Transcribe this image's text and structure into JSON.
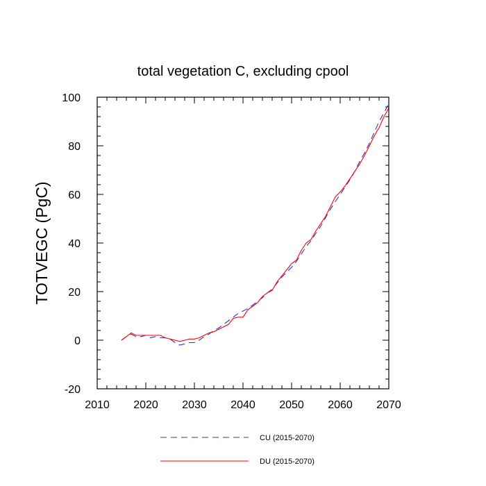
{
  "chart_data": {
    "type": "line",
    "title": "total vegetation C, excluding cpool",
    "xlabel": "",
    "ylabel": "TOTVEGC  (PgC)",
    "xlim": [
      2010,
      2070
    ],
    "ylim": [
      -20,
      100
    ],
    "x_ticks": [
      2010,
      2020,
      2030,
      2040,
      2050,
      2060,
      2070
    ],
    "y_ticks": [
      -20,
      0,
      20,
      40,
      60,
      80,
      100
    ],
    "x_minor_step": 2,
    "y_minor_step": 4,
    "grid": false,
    "legend_position": "bottom",
    "x": [
      2015,
      2016,
      2017,
      2018,
      2019,
      2020,
      2021,
      2022,
      2023,
      2024,
      2025,
      2026,
      2027,
      2028,
      2029,
      2030,
      2031,
      2032,
      2033,
      2034,
      2035,
      2036,
      2037,
      2038,
      2039,
      2040,
      2041,
      2042,
      2043,
      2044,
      2045,
      2046,
      2047,
      2048,
      2049,
      2050,
      2051,
      2052,
      2053,
      2054,
      2055,
      2056,
      2057,
      2058,
      2059,
      2060,
      2061,
      2062,
      2063,
      2064,
      2065,
      2066,
      2067,
      2068,
      2069,
      2070
    ],
    "series": [
      {
        "name": "CU (2015-2070)",
        "color": "#3333cc",
        "dash": "dashed",
        "values": [
          0.0,
          1.5,
          2.5,
          1.5,
          1.5,
          2.0,
          1.0,
          1.5,
          1.0,
          1.0,
          0.5,
          -1.0,
          -2.0,
          -1.5,
          -1.0,
          -1.0,
          0.0,
          1.5,
          2.5,
          4.0,
          5.0,
          6.5,
          8.0,
          9.5,
          11.0,
          12.0,
          13.0,
          14.5,
          16.0,
          17.5,
          19.5,
          21.0,
          23.5,
          26.0,
          28.0,
          30.0,
          32.5,
          35.5,
          38.5,
          41.0,
          44.0,
          47.0,
          50.5,
          54.0,
          57.0,
          60.0,
          63.0,
          66.0,
          69.5,
          73.5,
          77.0,
          81.0,
          85.5,
          90.0,
          93.5,
          97.5
        ]
      },
      {
        "name": "DU (2015-2070)",
        "color": "#ff0000",
        "dash": "solid",
        "values": [
          0.0,
          1.5,
          3.0,
          2.0,
          2.0,
          2.0,
          2.0,
          2.0,
          2.0,
          1.0,
          0.5,
          0.0,
          -0.5,
          0.0,
          0.5,
          0.5,
          1.0,
          2.0,
          3.0,
          3.5,
          4.5,
          5.5,
          6.5,
          9.0,
          9.5,
          9.5,
          12.5,
          14.0,
          15.5,
          18.0,
          19.5,
          20.5,
          24.0,
          26.5,
          29.0,
          31.5,
          33.0,
          37.0,
          40.0,
          41.5,
          45.0,
          48.0,
          51.0,
          55.0,
          59.0,
          61.0,
          63.5,
          66.5,
          69.5,
          72.5,
          76.0,
          80.0,
          84.0,
          87.5,
          92.0,
          95.5
        ]
      }
    ]
  }
}
